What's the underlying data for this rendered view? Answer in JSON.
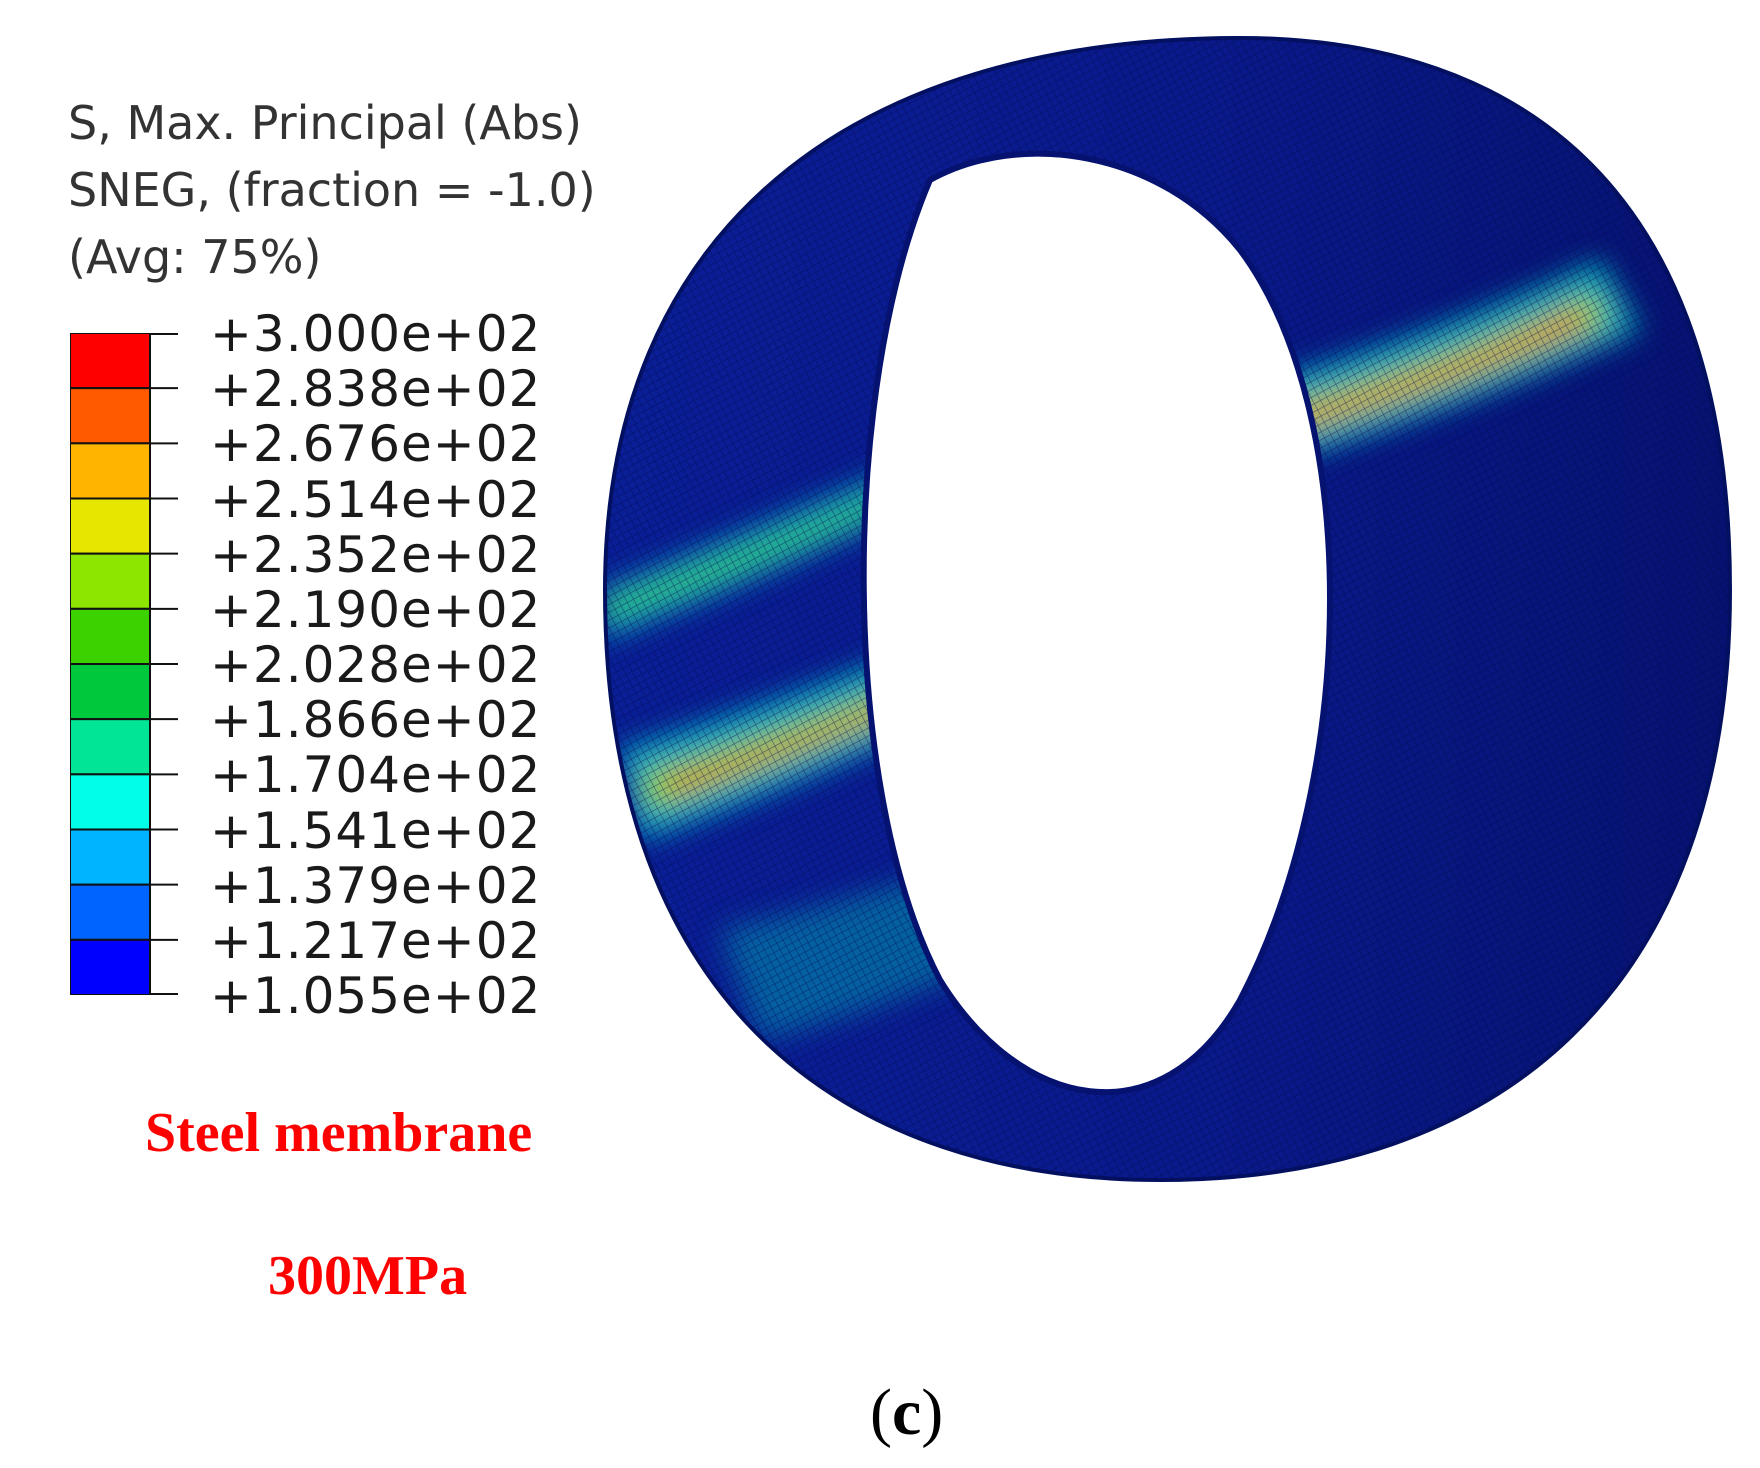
{
  "legend": {
    "title_lines": [
      "S, Max. Principal (Abs)",
      "SNEG, (fraction = -1.0)",
      "(Avg: 75%)"
    ],
    "tick_labels": [
      "+3.000e+02",
      "+2.838e+02",
      "+2.676e+02",
      "+2.514e+02",
      "+2.352e+02",
      "+2.190e+02",
      "+2.028e+02",
      "+1.866e+02",
      "+1.704e+02",
      "+1.541e+02",
      "+1.379e+02",
      "+1.217e+02",
      "+1.055e+02"
    ],
    "band_colors": [
      "#ff0000",
      "#ff5a00",
      "#ffb400",
      "#e6e600",
      "#8ce600",
      "#3cd200",
      "#00c83c",
      "#00e696",
      "#00ffe6",
      "#00b4ff",
      "#0064ff",
      "#0000ff"
    ]
  },
  "caption": {
    "material": "Steel membrane",
    "pressure": "300MPa"
  },
  "panel_label": {
    "open": "(",
    "letter": "c",
    "close": ")"
  },
  "colors": {
    "caption": "#ff0000",
    "cylinder_base": "#0a1a8c",
    "cylinder_dark": "#020a50"
  }
}
